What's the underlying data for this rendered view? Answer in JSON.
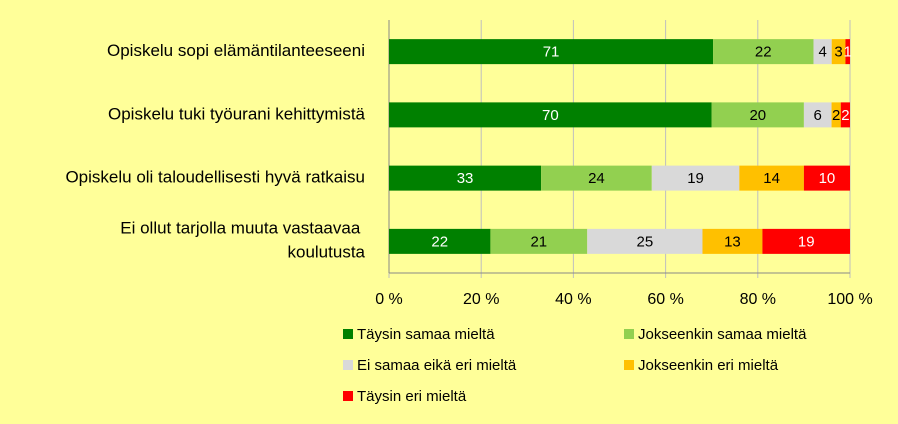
{
  "chart_data": {
    "type": "bar",
    "orientation": "horizontal",
    "stacked_percent": true,
    "categories": [
      "Opiskelu sopi elämäntilanteeseeni",
      "Opiskelu tuki työurani kehittymistä",
      "Opiskelu oli taloudellisesti hyvä ratkaisu",
      "Ei ollut tarjolla muuta vastaavaa koulutusta"
    ],
    "series": [
      {
        "name": "Täysin samaa mieltä",
        "color": "#008000",
        "label_color": "#ffffff",
        "values": [
          71,
          70,
          33,
          22
        ]
      },
      {
        "name": "Jokseenkin samaa mieltä",
        "color": "#92d050",
        "label_color": "#000000",
        "values": [
          22,
          20,
          24,
          21
        ]
      },
      {
        "name": "Ei samaa eikä eri mieltä",
        "color": "#d9d9d9",
        "label_color": "#000000",
        "values": [
          4,
          6,
          19,
          25
        ]
      },
      {
        "name": "Jokseenkin eri mieltä",
        "color": "#ffc000",
        "label_color": "#000000",
        "values": [
          3,
          2,
          14,
          13
        ]
      },
      {
        "name": "Täysin eri mieltä",
        "color": "#ff0000",
        "label_color": "#ffffff",
        "values": [
          1,
          2,
          10,
          19
        ]
      }
    ],
    "xlim": [
      0,
      100
    ],
    "xticks": [
      {
        "value": 0,
        "label": "0 %"
      },
      {
        "value": 20,
        "label": "20 %"
      },
      {
        "value": 40,
        "label": "40 %"
      },
      {
        "value": 60,
        "label": "60 %"
      },
      {
        "value": 80,
        "label": "80 %"
      },
      {
        "value": 100,
        "label": "100 %"
      }
    ],
    "grid": true
  }
}
